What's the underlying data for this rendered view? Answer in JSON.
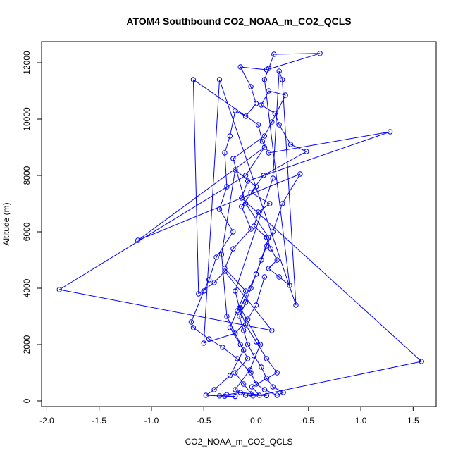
{
  "chart_data": {
    "type": "scatter",
    "connected": true,
    "title": "ATOM4 Southbound CO2_NOAA_m_CO2_QCLS",
    "xlabel": "CO2_NOAA_m_CO2_QCLS",
    "ylabel": "Altitude (m)",
    "xlim": [
      -2.05,
      1.72
    ],
    "ylim": [
      -200,
      12750
    ],
    "xticks": [
      -2.0,
      -1.5,
      -1.0,
      -0.5,
      0.0,
      0.5,
      1.0,
      1.5
    ],
    "xtick_labels": [
      "-2.0",
      "-1.5",
      "-1.0",
      "-0.5",
      "0.0",
      "0.5",
      "1.0",
      "1.5"
    ],
    "yticks": [
      0,
      2000,
      4000,
      6000,
      8000,
      10000,
      12000
    ],
    "ytick_labels": [
      "0",
      "2000",
      "4000",
      "6000",
      "8000",
      "10000",
      "12000"
    ],
    "colors": {
      "series": "#0000ff",
      "axis": "#000000",
      "background": "#ffffff"
    },
    "series": [
      {
        "name": "CO2_NOAA_m_CO2_QCLS",
        "x": [
          -0.03,
          -0.12,
          -0.2,
          -0.08,
          -0.15,
          -0.25,
          -0.18,
          -0.1,
          -0.3,
          -0.22,
          -0.05,
          -0.14,
          0.0,
          -0.2,
          -0.33,
          -0.28,
          -0.12,
          -0.25,
          -0.4,
          -0.48,
          -0.3,
          -0.2,
          -0.35,
          -0.28,
          -0.15,
          -0.05,
          0.1,
          -0.1,
          -0.2,
          -0.06,
          0.04,
          -0.15,
          0.0,
          0.12,
          -0.1,
          -0.22,
          0.08,
          0.15,
          0.28,
          0.12,
          0.05,
          0.18,
          0.22,
          0.33,
          0.48,
          0.07,
          -0.05,
          0.13,
          0.02,
          -0.02,
          0.1,
          0.14,
          0.2,
          0.12,
          0.22,
          0.32,
          0.08,
          0.12,
          0.17,
          0.61,
          0.1,
          -0.15,
          -0.05,
          0.0,
          -0.1,
          -0.2,
          -0.25,
          -0.3,
          -0.28,
          -0.35,
          -0.22,
          -0.38,
          -0.45,
          -0.5,
          -0.62,
          -0.6,
          -0.45,
          -0.32,
          -0.18,
          -0.05,
          0.0,
          0.08,
          0.2,
          0.26,
          0.16,
          0.1,
          0.05,
          -0.02,
          -0.08,
          -0.12,
          -0.16,
          -0.1,
          -0.05,
          0.0,
          0.05,
          0.1,
          0.16,
          0.25,
          0.42,
          -1.13,
          0.08,
          -0.1,
          -1.88,
          0.15,
          -0.3,
          -0.4,
          -0.55,
          -0.6,
          0.02,
          0.06,
          0.12,
          1.28,
          -0.08,
          -0.14,
          1.58,
          0.03,
          -0.04,
          0.2,
          0.1,
          0.0,
          -0.1,
          -0.16,
          -0.2,
          0.16,
          0.22,
          0.25,
          0.38,
          -0.35,
          -0.5,
          -0.2,
          -0.08,
          0.0,
          0.08
        ],
        "y": [
          180,
          600,
          1000,
          1500,
          2000,
          2600,
          3200,
          3900,
          4700,
          5400,
          6100,
          6900,
          7600,
          8200,
          5200,
          3000,
          1800,
          900,
          400,
          200,
          170,
          160,
          180,
          220,
          300,
          250,
          190,
          200,
          400,
          1100,
          2000,
          3300,
          4500,
          5800,
          7000,
          8600,
          9400,
          9900,
          10850,
          11000,
          10500,
          10200,
          9800,
          9100,
          8850,
          8000,
          7400,
          7000,
          6700,
          6200,
          5800,
          5400,
          5000,
          4700,
          4400,
          4100,
          11400,
          11800,
          12300,
          12330,
          11750,
          11850,
          11150,
          10550,
          10100,
          10300,
          9400,
          8800,
          7600,
          6800,
          6000,
          5100,
          4300,
          3900,
          2800,
          2600,
          2200,
          1900,
          1500,
          1000,
          600,
          400,
          200,
          300,
          500,
          800,
          1200,
          1600,
          2000,
          2500,
          3000,
          3500,
          4000,
          4500,
          5000,
          5500,
          6000,
          7000,
          8050,
          5700,
          9000,
          8000,
          3950,
          2500,
          4600,
          4200,
          3800,
          11400,
          9800,
          9200,
          8800,
          9550,
          7800,
          7200,
          1400,
          200,
          500,
          1000,
          1500,
          2100,
          2700,
          3300,
          3900,
          7900,
          11700,
          11400,
          3400,
          11400,
          2050,
          2400,
          2900,
          3400,
          4400
        ]
      }
    ]
  }
}
